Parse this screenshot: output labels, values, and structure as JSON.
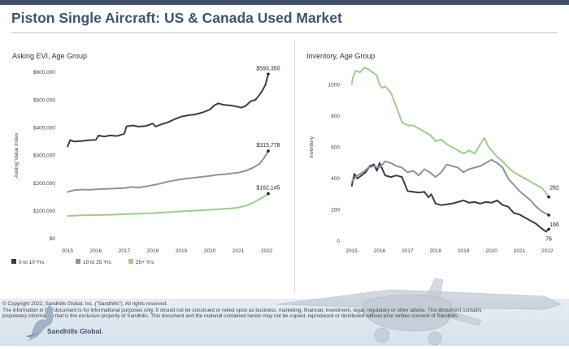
{
  "header": {
    "title": "Piston Single Aircraft:  US & Canada Used Market"
  },
  "colors": {
    "young": "#3b3e48",
    "mid": "#8a94a2",
    "old": "#9fcc8a",
    "header": "#3d4f6b"
  },
  "chart_data": [
    {
      "type": "line",
      "title": "Asking EVI, Age Group",
      "ylabel": "Asking Value Index",
      "xlabel": "",
      "xlim": [
        2014.75,
        2022.25
      ],
      "ylim": [
        0,
        600000
      ],
      "xticks": [
        "2015",
        "2016",
        "2017",
        "2018",
        "2019",
        "2020",
        "2021",
        "2022"
      ],
      "yticks": [
        "$0",
        "$100,000",
        "$200,000",
        "$300,000",
        "$400,000",
        "$500,000",
        "$600,000"
      ],
      "grid": false,
      "legend": "bottom",
      "series": [
        {
          "name": "0 to 10 Yrs",
          "end_label": "$593,350",
          "points": [
            [
              2015,
              330000
            ],
            [
              2015.1,
              355000
            ],
            [
              2015.25,
              350000
            ],
            [
              2015.5,
              352000
            ],
            [
              2015.75,
              355000
            ],
            [
              2016,
              356000
            ],
            [
              2016.1,
              372000
            ],
            [
              2016.3,
              368000
            ],
            [
              2016.5,
              372000
            ],
            [
              2016.75,
              370000
            ],
            [
              2017,
              378000
            ],
            [
              2017.08,
              405000
            ],
            [
              2017.3,
              408000
            ],
            [
              2017.5,
              404000
            ],
            [
              2017.75,
              406000
            ],
            [
              2018,
              415000
            ],
            [
              2018.1,
              404000
            ],
            [
              2018.3,
              412000
            ],
            [
              2018.5,
              418000
            ],
            [
              2018.75,
              430000
            ],
            [
              2019,
              440000
            ],
            [
              2019.25,
              445000
            ],
            [
              2019.5,
              448000
            ],
            [
              2019.75,
              455000
            ],
            [
              2020,
              465000
            ],
            [
              2020.15,
              480000
            ],
            [
              2020.3,
              488000
            ],
            [
              2020.5,
              482000
            ],
            [
              2020.75,
              480000
            ],
            [
              2021,
              475000
            ],
            [
              2021.1,
              472000
            ],
            [
              2021.25,
              478000
            ],
            [
              2021.4,
              492000
            ],
            [
              2021.5,
              498000
            ],
            [
              2021.6,
              500000
            ],
            [
              2021.75,
              520000
            ],
            [
              2021.85,
              535000
            ],
            [
              2021.95,
              555000
            ],
            [
              2022.05,
              593350
            ]
          ]
        },
        {
          "name": "10 to 25 Yrs",
          "end_label": "$315,778",
          "points": [
            [
              2015,
              168000
            ],
            [
              2015.25,
              175000
            ],
            [
              2015.5,
              177000
            ],
            [
              2015.75,
              176000
            ],
            [
              2016,
              178000
            ],
            [
              2016.5,
              180000
            ],
            [
              2017,
              182000
            ],
            [
              2017.25,
              186000
            ],
            [
              2017.5,
              184000
            ],
            [
              2017.75,
              188000
            ],
            [
              2018,
              193000
            ],
            [
              2018.25,
              198000
            ],
            [
              2018.5,
              205000
            ],
            [
              2018.75,
              210000
            ],
            [
              2019,
              214000
            ],
            [
              2019.5,
              220000
            ],
            [
              2020,
              226000
            ],
            [
              2020.25,
              230000
            ],
            [
              2020.5,
              232000
            ],
            [
              2020.75,
              235000
            ],
            [
              2021,
              238000
            ],
            [
              2021.25,
              244000
            ],
            [
              2021.5,
              255000
            ],
            [
              2021.75,
              270000
            ],
            [
              2021.9,
              290000
            ],
            [
              2022.05,
              315778
            ]
          ]
        },
        {
          "name": "25+ Yrs",
          "end_label": "$162,145",
          "points": [
            [
              2015,
              82000
            ],
            [
              2015.5,
              84000
            ],
            [
              2016,
              85000
            ],
            [
              2016.5,
              86000
            ],
            [
              2017,
              88000
            ],
            [
              2017.5,
              90000
            ],
            [
              2018,
              92000
            ],
            [
              2018.5,
              95000
            ],
            [
              2019,
              98000
            ],
            [
              2019.5,
              101000
            ],
            [
              2020,
              104000
            ],
            [
              2020.5,
              107000
            ],
            [
              2020.75,
              109000
            ],
            [
              2021,
              112000
            ],
            [
              2021.25,
              118000
            ],
            [
              2021.5,
              128000
            ],
            [
              2021.7,
              140000
            ],
            [
              2021.85,
              148000
            ],
            [
              2022.05,
              162145
            ]
          ]
        }
      ]
    },
    {
      "type": "line",
      "title": "Inventory, Age Group",
      "ylabel": "Inventory",
      "xlabel": "",
      "xlim": [
        2014.75,
        2022.25
      ],
      "ylim": [
        0,
        1200
      ],
      "xticks": [
        "2015",
        "2016",
        "2017",
        "2018",
        "2019",
        "2020",
        "2021",
        "2022"
      ],
      "yticks": [
        "0",
        "200",
        "400",
        "600",
        "800",
        "1000"
      ],
      "grid": false,
      "series": [
        {
          "name": "0 to 10 Yrs",
          "end_label": "76",
          "points": [
            [
              2015,
              350.0
            ],
            [
              2015.1,
              430
            ],
            [
              2015.2,
              400
            ],
            [
              2015.35,
              420
            ],
            [
              2015.5,
              440
            ],
            [
              2015.65,
              480
            ],
            [
              2015.8,
              490
            ],
            [
              2015.9,
              450
            ],
            [
              2016,
              500
            ],
            [
              2016.1,
              460
            ],
            [
              2016.2,
              420
            ],
            [
              2016.4,
              410
            ],
            [
              2016.6,
              420
            ],
            [
              2016.8,
              410
            ],
            [
              2017,
              320
            ],
            [
              2017.2,
              315
            ],
            [
              2017.4,
              310
            ],
            [
              2017.6,
              315
            ],
            [
              2017.75,
              280
            ],
            [
              2017.85,
              300
            ],
            [
              2018,
              240
            ],
            [
              2018.2,
              230
            ],
            [
              2018.4,
              235
            ],
            [
              2018.6,
              240
            ],
            [
              2018.8,
              250
            ],
            [
              2019,
              260
            ],
            [
              2019.2,
              245
            ],
            [
              2019.4,
              250
            ],
            [
              2019.6,
              240
            ],
            [
              2019.8,
              250
            ],
            [
              2020,
              245
            ],
            [
              2020.2,
              260
            ],
            [
              2020.4,
              230
            ],
            [
              2020.6,
              220
            ],
            [
              2020.8,
              180
            ],
            [
              2021,
              170
            ],
            [
              2021.2,
              150
            ],
            [
              2021.4,
              130
            ],
            [
              2021.6,
              110
            ],
            [
              2021.8,
              80
            ],
            [
              2021.95,
              60
            ],
            [
              2022.05,
              76
            ]
          ]
        },
        {
          "name": "10 to 25 Yrs",
          "end_label": "166",
          "points": [
            [
              2015,
              380
            ],
            [
              2015.2,
              420
            ],
            [
              2015.4,
              440
            ],
            [
              2015.6,
              470
            ],
            [
              2015.8,
              480
            ],
            [
              2016,
              470
            ],
            [
              2016.2,
              510
            ],
            [
              2016.4,
              500
            ],
            [
              2016.6,
              480
            ],
            [
              2016.8,
              470
            ],
            [
              2017,
              440
            ],
            [
              2017.2,
              450
            ],
            [
              2017.4,
              420
            ],
            [
              2017.6,
              460
            ],
            [
              2017.8,
              440
            ],
            [
              2018,
              410
            ],
            [
              2018.2,
              440
            ],
            [
              2018.4,
              490
            ],
            [
              2018.6,
              480
            ],
            [
              2018.8,
              470
            ],
            [
              2019,
              440
            ],
            [
              2019.2,
              460
            ],
            [
              2019.4,
              470
            ],
            [
              2019.6,
              480
            ],
            [
              2019.8,
              500
            ],
            [
              2020,
              520
            ],
            [
              2020.2,
              500
            ],
            [
              2020.4,
              470
            ],
            [
              2020.6,
              400
            ],
            [
              2020.8,
              360
            ],
            [
              2021,
              320
            ],
            [
              2021.2,
              290
            ],
            [
              2021.4,
              260
            ],
            [
              2021.6,
              220
            ],
            [
              2021.8,
              190
            ],
            [
              2022.05,
              166
            ]
          ]
        },
        {
          "name": "25+ Yrs",
          "end_label": "282",
          "points": [
            [
              2015,
              1000
            ],
            [
              2015.05,
              1050
            ],
            [
              2015.15,
              1090
            ],
            [
              2015.3,
              1080
            ],
            [
              2015.45,
              1110
            ],
            [
              2015.6,
              1100
            ],
            [
              2015.75,
              1080
            ],
            [
              2015.9,
              1060
            ],
            [
              2016,
              1000
            ],
            [
              2016.1,
              980
            ],
            [
              2016.2,
              990
            ],
            [
              2016.4,
              950
            ],
            [
              2016.6,
              860
            ],
            [
              2016.8,
              760
            ],
            [
              2017,
              740
            ],
            [
              2017.2,
              740
            ],
            [
              2017.4,
              720
            ],
            [
              2017.6,
              700
            ],
            [
              2017.8,
              680
            ],
            [
              2018,
              640
            ],
            [
              2018.2,
              650
            ],
            [
              2018.4,
              620
            ],
            [
              2018.6,
              600
            ],
            [
              2018.8,
              580
            ],
            [
              2019,
              560
            ],
            [
              2019.2,
              580
            ],
            [
              2019.4,
              560
            ],
            [
              2019.6,
              620
            ],
            [
              2019.75,
              660
            ],
            [
              2019.9,
              600
            ],
            [
              2020,
              580
            ],
            [
              2020.2,
              540
            ],
            [
              2020.4,
              510
            ],
            [
              2020.6,
              470
            ],
            [
              2020.8,
              440
            ],
            [
              2021,
              420
            ],
            [
              2021.2,
              400
            ],
            [
              2021.4,
              380
            ],
            [
              2021.6,
              360
            ],
            [
              2021.8,
              340
            ],
            [
              2021.9,
              320
            ],
            [
              2022.05,
              282
            ]
          ]
        }
      ]
    }
  ],
  "footer": {
    "copyright": "© Copyright 2022, Sandhills Global, Inc. (\"Sandhills\"). All rights reserved.",
    "disclaimer": "The information in this document is for informational purposes only.  It should not be construed or relied upon as business, marketing, financial, investment, legal, regulatory or other advice. This document contains proprietary information that is the exclusive property of Sandhills. This document and the material contained herein may not be copied, reproduced or distributed without prior written consent of Sandhills.",
    "brand": "Sandhills Global."
  }
}
